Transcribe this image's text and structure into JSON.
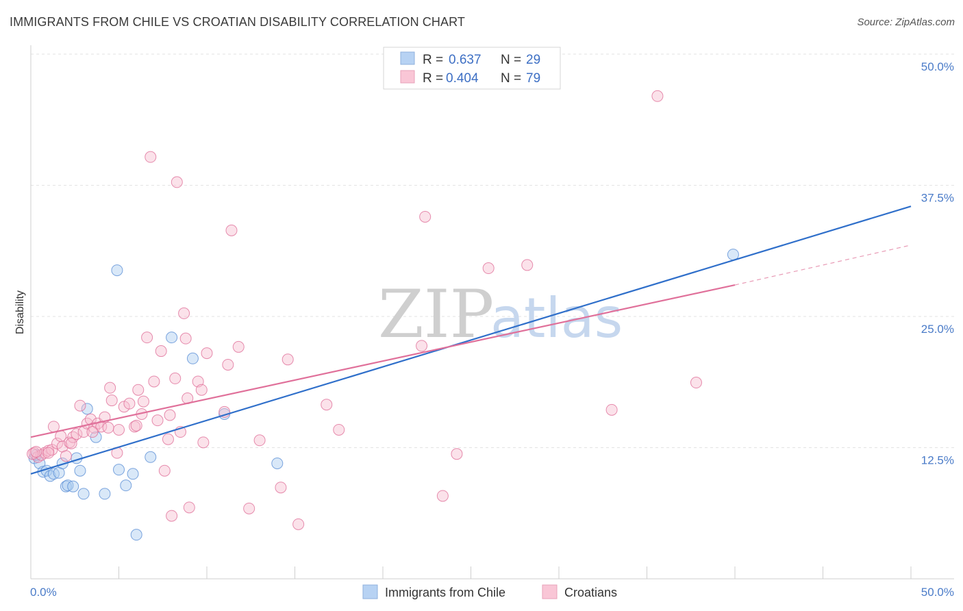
{
  "header": {
    "title": "IMMIGRANTS FROM CHILE VS CROATIAN DISABILITY CORRELATION CHART",
    "source": "Source: ZipAtlas.com"
  },
  "watermark": {
    "zip": "ZIP",
    "atlas": "atlas"
  },
  "legend": {
    "rows": [
      {
        "r_label": "R = ",
        "r_value": "0.637",
        "n_label": "N = ",
        "n_value": "29",
        "color": "#8fb8ea"
      },
      {
        "r_label": "R = ",
        "r_value": "0.404",
        "n_label": "N = ",
        "n_value": "79",
        "color": "#f3a9c0"
      }
    ]
  },
  "bottom_legend": [
    {
      "label": "Immigrants from Chile",
      "color": "#8fb8ea"
    },
    {
      "label": "Croatians",
      "color": "#f3a9c0"
    }
  ],
  "chart_data": {
    "type": "scatter",
    "title": "IMMIGRANTS FROM CHILE VS CROATIAN DISABILITY CORRELATION CHART",
    "xlabel": "",
    "ylabel": "Disability",
    "xlim": [
      0,
      50
    ],
    "ylim": [
      0,
      50
    ],
    "x_tick_labels": [
      "0.0%",
      "50.0%"
    ],
    "y_ticks": [
      12.5,
      25.0,
      37.5,
      50.0
    ],
    "y_tick_labels": [
      "12.5%",
      "25.0%",
      "37.5%",
      "50.0%"
    ],
    "grid": true,
    "legend_position": "top-center",
    "series": [
      {
        "name": "Immigrants from Chile",
        "color": "#5b8fd6",
        "fill": "#aacbf0",
        "trend": {
          "x": [
            0,
            50
          ],
          "y": [
            10.0,
            35.5
          ],
          "style": "solid"
        },
        "points": [
          [
            0.2,
            11.5
          ],
          [
            0.5,
            11.0
          ],
          [
            0.7,
            10.2
          ],
          [
            0.9,
            10.3
          ],
          [
            1.1,
            9.8
          ],
          [
            1.3,
            10.0
          ],
          [
            1.6,
            10.1
          ],
          [
            1.8,
            11.0
          ],
          [
            2.0,
            8.8
          ],
          [
            2.1,
            8.9
          ],
          [
            2.4,
            8.8
          ],
          [
            2.8,
            10.3
          ],
          [
            2.6,
            11.5
          ],
          [
            3.0,
            8.1
          ],
          [
            3.2,
            16.2
          ],
          [
            3.7,
            13.5
          ],
          [
            4.2,
            8.1
          ],
          [
            4.9,
            29.4
          ],
          [
            5.0,
            10.4
          ],
          [
            5.4,
            8.9
          ],
          [
            5.8,
            10.0
          ],
          [
            6.0,
            4.2
          ],
          [
            6.8,
            11.6
          ],
          [
            8.0,
            23.0
          ],
          [
            9.2,
            21.0
          ],
          [
            11.0,
            15.7
          ],
          [
            14.0,
            11.0
          ],
          [
            39.9,
            30.9
          ],
          [
            0.3,
            11.8
          ]
        ]
      },
      {
        "name": "Croatians",
        "color": "#e0709a",
        "fill": "#f7bfd1",
        "trend": {
          "x": [
            0,
            40
          ],
          "y": [
            13.5,
            28.0
          ],
          "style": "solid",
          "dashed_to": {
            "x": 50,
            "y": 31.8
          }
        },
        "points": [
          [
            0.2,
            12.0
          ],
          [
            0.4,
            11.6
          ],
          [
            0.6,
            11.8
          ],
          [
            0.8,
            12.0
          ],
          [
            1.0,
            12.2
          ],
          [
            1.2,
            12.3
          ],
          [
            1.3,
            14.5
          ],
          [
            1.5,
            12.9
          ],
          [
            1.7,
            13.6
          ],
          [
            1.8,
            12.6
          ],
          [
            2.0,
            11.7
          ],
          [
            2.2,
            13.0
          ],
          [
            2.4,
            13.5
          ],
          [
            2.6,
            13.8
          ],
          [
            2.8,
            16.5
          ],
          [
            3.0,
            14.0
          ],
          [
            3.2,
            14.8
          ],
          [
            3.4,
            15.2
          ],
          [
            3.6,
            14.4
          ],
          [
            3.8,
            14.8
          ],
          [
            4.0,
            14.5
          ],
          [
            4.2,
            15.4
          ],
          [
            4.4,
            14.4
          ],
          [
            4.5,
            18.2
          ],
          [
            4.6,
            17.0
          ],
          [
            4.9,
            12.0
          ],
          [
            5.0,
            14.2
          ],
          [
            5.3,
            16.4
          ],
          [
            5.6,
            16.7
          ],
          [
            5.9,
            14.5
          ],
          [
            6.1,
            18.0
          ],
          [
            6.3,
            15.7
          ],
          [
            6.4,
            16.9
          ],
          [
            6.6,
            23.0
          ],
          [
            6.8,
            40.2
          ],
          [
            7.0,
            18.8
          ],
          [
            7.2,
            15.1
          ],
          [
            7.4,
            21.7
          ],
          [
            7.6,
            10.3
          ],
          [
            7.8,
            13.3
          ],
          [
            7.9,
            15.6
          ],
          [
            8.0,
            6.0
          ],
          [
            8.2,
            19.1
          ],
          [
            8.3,
            37.8
          ],
          [
            8.5,
            14.0
          ],
          [
            8.7,
            25.3
          ],
          [
            8.8,
            22.9
          ],
          [
            8.9,
            17.2
          ],
          [
            9.0,
            6.8
          ],
          [
            9.5,
            18.8
          ],
          [
            9.7,
            18.0
          ],
          [
            9.8,
            13.0
          ],
          [
            10.0,
            21.5
          ],
          [
            11.0,
            15.9
          ],
          [
            11.2,
            20.4
          ],
          [
            11.4,
            33.2
          ],
          [
            11.8,
            22.1
          ],
          [
            12.4,
            6.7
          ],
          [
            13.0,
            13.2
          ],
          [
            14.2,
            8.7
          ],
          [
            14.6,
            20.9
          ],
          [
            15.2,
            5.2
          ],
          [
            16.8,
            16.6
          ],
          [
            17.5,
            14.2
          ],
          [
            22.2,
            22.2
          ],
          [
            22.4,
            34.5
          ],
          [
            23.4,
            7.9
          ],
          [
            24.2,
            11.9
          ],
          [
            26.0,
            29.6
          ],
          [
            28.2,
            29.9
          ],
          [
            33.0,
            16.1
          ],
          [
            35.6,
            46.0
          ],
          [
            37.8,
            18.7
          ],
          [
            0.1,
            11.9
          ],
          [
            0.3,
            12.1
          ],
          [
            1.0,
            12.0
          ],
          [
            2.3,
            12.9
          ],
          [
            3.5,
            14.0
          ],
          [
            6.0,
            14.6
          ]
        ]
      }
    ]
  }
}
